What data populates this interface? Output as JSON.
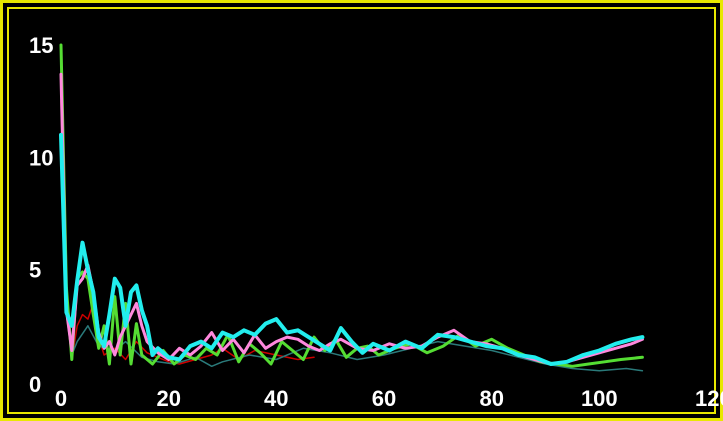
{
  "chart_data": {
    "type": "line",
    "title": "",
    "xlabel": "",
    "ylabel": "",
    "xlim": [
      0,
      120
    ],
    "ylim": [
      0,
      15
    ],
    "grid": false,
    "legend": "none",
    "x_ticks": [
      "0",
      "20",
      "40",
      "60",
      "80",
      "100",
      "120"
    ],
    "y_ticks": [
      "0",
      "5",
      "10",
      "15"
    ],
    "colors": {
      "background": "#000000",
      "frame": "#e8e800",
      "text": "#ffffff"
    },
    "series": [
      {
        "color": "#cc0000",
        "width": 1.5,
        "x": [
          0,
          1,
          2,
          3,
          4,
          5,
          6,
          7,
          8,
          10,
          12,
          14,
          16,
          18,
          20,
          22,
          25,
          28,
          30,
          33,
          36,
          40,
          44,
          47
        ],
        "y": [
          12.5,
          3.5,
          1.0,
          2.5,
          3.0,
          2.8,
          3.5,
          2.0,
          1.2,
          1.5,
          1.0,
          1.8,
          1.3,
          1.1,
          0.9,
          0.8,
          1.0,
          1.2,
          1.5,
          1.0,
          1.4,
          1.2,
          1.0,
          1.1
        ]
      },
      {
        "color": "#2a7a7a",
        "width": 1.5,
        "x": [
          0,
          1,
          2,
          3,
          5,
          7,
          10,
          12,
          15,
          18,
          21,
          25,
          28,
          30,
          35,
          40,
          45,
          50,
          55,
          60,
          70,
          80,
          90,
          95,
          100,
          105,
          108
        ],
        "y": [
          11.0,
          3.0,
          1.2,
          1.8,
          2.5,
          1.6,
          1.4,
          1.8,
          1.1,
          0.9,
          0.8,
          1.1,
          0.7,
          0.9,
          1.2,
          1.0,
          1.5,
          1.3,
          1.0,
          1.2,
          1.8,
          1.4,
          0.8,
          0.6,
          0.5,
          0.6,
          0.5
        ]
      },
      {
        "color": "#55dd33",
        "width": 3,
        "x": [
          0,
          1,
          2,
          3,
          4,
          5,
          6,
          7,
          8,
          9,
          10,
          11,
          12,
          13,
          14,
          15,
          17,
          19,
          21,
          23,
          25,
          27,
          29,
          31,
          33,
          35,
          37,
          39,
          41,
          43,
          45,
          47,
          49,
          51,
          53,
          55,
          57,
          59,
          62,
          65,
          68,
          71,
          74,
          77,
          80,
          83,
          86,
          89,
          92,
          95,
          98,
          101,
          104,
          108
        ],
        "y": [
          15.0,
          4.2,
          1.0,
          4.6,
          4.9,
          4.6,
          3.0,
          1.5,
          2.5,
          0.8,
          3.8,
          1.2,
          3.5,
          0.8,
          2.6,
          1.2,
          0.8,
          1.4,
          0.8,
          1.2,
          1.0,
          1.5,
          1.2,
          2.1,
          0.9,
          1.7,
          1.3,
          0.8,
          1.8,
          1.4,
          1.0,
          2.0,
          1.4,
          1.9,
          1.1,
          1.5,
          1.6,
          1.2,
          1.5,
          1.7,
          1.3,
          1.6,
          2.1,
          1.6,
          1.9,
          1.5,
          1.2,
          0.9,
          0.8,
          0.7,
          0.8,
          0.9,
          1.0,
          1.1
        ]
      },
      {
        "color": "#ff88dd",
        "width": 3,
        "x": [
          0,
          1,
          2,
          3,
          4,
          5,
          6,
          7,
          8,
          9,
          10,
          11,
          12,
          13,
          14,
          15,
          16,
          18,
          20,
          22,
          24,
          26,
          28,
          30,
          32,
          34,
          36,
          38,
          40,
          42,
          44,
          46,
          48,
          50,
          52,
          55,
          58,
          61,
          64,
          67,
          70,
          73,
          76,
          79,
          82,
          85,
          88,
          91,
          94,
          97,
          100,
          103,
          106,
          108
        ],
        "y": [
          13.7,
          3.2,
          1.4,
          4.3,
          4.6,
          5.2,
          4.0,
          2.2,
          1.5,
          1.8,
          1.2,
          2.0,
          2.5,
          3.0,
          3.5,
          2.5,
          1.8,
          1.3,
          1.0,
          1.5,
          1.2,
          1.6,
          2.2,
          1.4,
          1.9,
          1.3,
          2.1,
          1.5,
          1.8,
          2.0,
          1.9,
          1.6,
          1.4,
          1.7,
          1.9,
          1.5,
          1.4,
          1.7,
          1.5,
          1.6,
          2.0,
          2.3,
          1.8,
          1.7,
          1.5,
          1.2,
          1.0,
          0.8,
          0.9,
          1.1,
          1.3,
          1.5,
          1.7,
          1.9
        ]
      },
      {
        "color": "#22eeee",
        "width": 4,
        "x": [
          0,
          1,
          2,
          3,
          4,
          5,
          6,
          7,
          8,
          9,
          10,
          11,
          12,
          13,
          14,
          15,
          16,
          17,
          18,
          20,
          22,
          24,
          26,
          28,
          30,
          32,
          34,
          36,
          38,
          40,
          42,
          44,
          46,
          48,
          50,
          52,
          54,
          56,
          58,
          61,
          64,
          67,
          70,
          73,
          76,
          79,
          82,
          85,
          88,
          91,
          94,
          97,
          100,
          103,
          106,
          108
        ],
        "y": [
          11.0,
          3.1,
          2.5,
          4.5,
          6.2,
          5.0,
          4.0,
          2.0,
          1.6,
          3.0,
          4.6,
          4.2,
          2.5,
          4.0,
          4.3,
          3.2,
          2.5,
          1.2,
          1.5,
          1.1,
          1.0,
          1.6,
          1.8,
          1.5,
          2.2,
          2.0,
          2.3,
          2.1,
          2.6,
          2.8,
          2.2,
          2.3,
          2.0,
          1.7,
          1.4,
          2.4,
          1.8,
          1.3,
          1.7,
          1.4,
          1.8,
          1.5,
          2.1,
          2.0,
          1.8,
          1.6,
          1.5,
          1.2,
          1.1,
          0.8,
          0.9,
          1.2,
          1.4,
          1.7,
          1.9,
          2.0
        ]
      }
    ]
  }
}
